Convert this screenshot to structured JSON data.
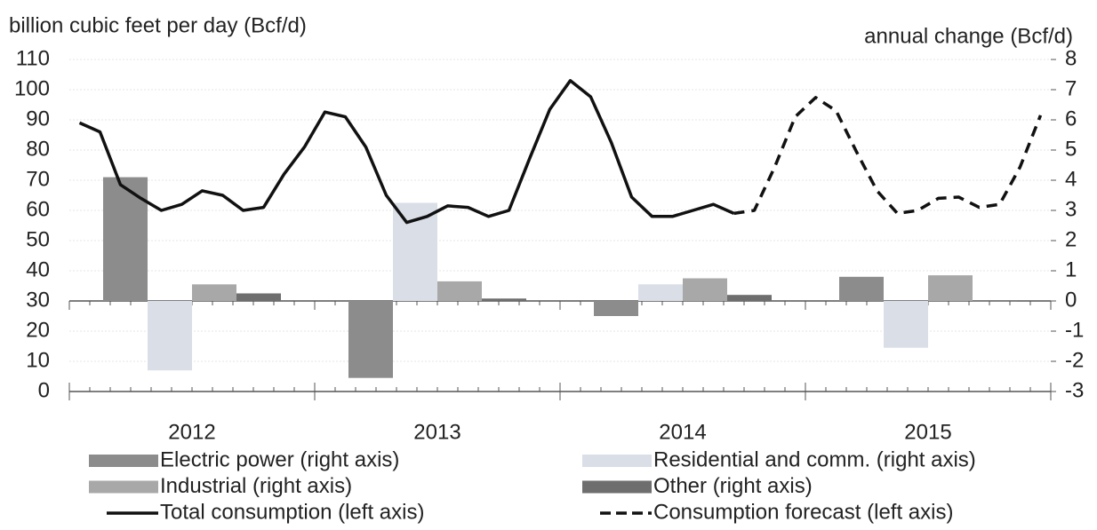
{
  "chart_data": {
    "type": "bar_line",
    "y_label": "billion cubic feet per day (Bcf/d)",
    "y2_label": "annual change (Bcf/d)",
    "categories": [
      null,
      null,
      null,
      null,
      null,
      null,
      null,
      null,
      null,
      null,
      null,
      null,
      null,
      null,
      null,
      null,
      null,
      null,
      null,
      null,
      null,
      null,
      null,
      null,
      null,
      null,
      null,
      null,
      null,
      null,
      null,
      null,
      null,
      null,
      null,
      null,
      null,
      null,
      null,
      null,
      null,
      null,
      null,
      null,
      null,
      null,
      null,
      null
    ],
    "groups": [
      "2012",
      "2013",
      "2014",
      "2015"
    ],
    "ylim": [
      0,
      110
    ],
    "yticks": [
      0,
      10,
      20,
      30,
      40,
      50,
      60,
      70,
      80,
      90,
      100,
      110
    ],
    "y2lim": [
      -3,
      8
    ],
    "y2ticks": [
      -3,
      -2,
      -1,
      0,
      1,
      2,
      3,
      4,
      5,
      6,
      7,
      8
    ],
    "grid": true,
    "bar_series": [
      {
        "name": "Electric power (right axis)",
        "color": "#8c8c8c",
        "axis": "y2",
        "values": [
          4.1,
          -2.55,
          -0.5,
          0.8
        ]
      },
      {
        "name": "Residential and comm. (right axis)",
        "color": "#d9dee7",
        "axis": "y2",
        "values": [
          -2.3,
          3.25,
          0.55,
          -1.55
        ]
      },
      {
        "name": "Industrial (right axis)",
        "color": "#a8a8a8",
        "axis": "y2",
        "values": [
          0.55,
          0.65,
          0.75,
          0.85
        ]
      },
      {
        "name": "Other (right axis)",
        "color": "#6e6e6e",
        "axis": "y2",
        "values": [
          0.25,
          0.08,
          0.2,
          0.02
        ]
      }
    ],
    "line_series": [
      {
        "name": "Total consumption (left axis)",
        "color": "#111111",
        "style": "solid",
        "values": [
          89,
          86,
          68.5,
          64,
          60,
          62,
          66.5,
          65,
          60,
          61,
          72,
          81,
          92.6,
          91,
          81,
          65,
          56,
          58,
          61.5,
          61,
          58,
          60,
          77,
          93.5,
          103,
          97.6,
          82.6,
          64.4,
          58,
          58,
          60,
          62,
          59,
          null,
          null,
          null,
          null,
          null,
          null,
          null,
          null,
          null,
          null,
          null,
          null,
          null,
          null,
          null
        ]
      },
      {
        "name": "Consumption forecast (left axis)",
        "color": "#111111",
        "style": "dashed",
        "values": [
          null,
          null,
          null,
          null,
          null,
          null,
          null,
          null,
          null,
          null,
          null,
          null,
          null,
          null,
          null,
          null,
          null,
          null,
          null,
          null,
          null,
          null,
          null,
          null,
          null,
          null,
          null,
          null,
          null,
          null,
          null,
          null,
          59,
          60,
          74.4,
          91,
          97.4,
          93,
          79.4,
          66.5,
          59,
          60,
          64,
          64.4,
          61,
          62,
          74.4,
          91.5
        ]
      }
    ]
  }
}
